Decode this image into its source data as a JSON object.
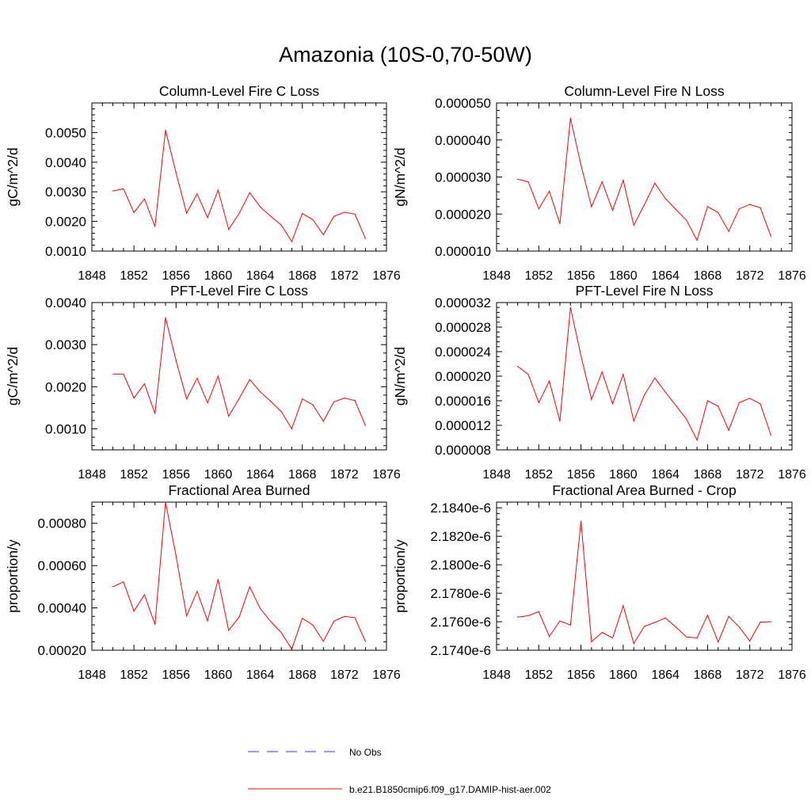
{
  "figure": {
    "title": "Amazonia (10S-0,70-50W)"
  },
  "legend": {
    "items": [
      {
        "label": "No Obs",
        "color": "#3333ff",
        "style": "dashed"
      },
      {
        "label": "b.e21.B1850cmip6.f09_g17.DAMIP-hist-aer.002",
        "color": "#ff0000",
        "style": "solid"
      }
    ]
  },
  "chart_data": [
    {
      "type": "line",
      "title": "Column-Level Fire C Loss",
      "xlabel": "",
      "ylabel": "gC/m^2/d",
      "xlim": [
        1848,
        1876
      ],
      "ylim": [
        0.001,
        0.006
      ],
      "xticks": [
        1848,
        1852,
        1856,
        1860,
        1864,
        1868,
        1872,
        1876
      ],
      "yticks": [
        0.001,
        0.002,
        0.003,
        0.004,
        0.005
      ],
      "ytick_labels": [
        "0.0010",
        "0.0020",
        "0.0030",
        "0.0040",
        "0.0050"
      ],
      "x": [
        1850,
        1851,
        1852,
        1853,
        1854,
        1855,
        1856,
        1857,
        1858,
        1859,
        1860,
        1861,
        1862,
        1863,
        1864,
        1865,
        1866,
        1867,
        1868,
        1869,
        1870,
        1871,
        1872,
        1873,
        1874
      ],
      "series": [
        {
          "values": [
            0.00303,
            0.0031,
            0.0023,
            0.00276,
            0.00183,
            0.00508,
            0.00364,
            0.00228,
            0.00293,
            0.00213,
            0.00306,
            0.00173,
            0.00227,
            0.00297,
            0.00249,
            0.00217,
            0.00188,
            0.00132,
            0.00227,
            0.00206,
            0.00155,
            0.00217,
            0.00231,
            0.00225,
            0.00142
          ],
          "color": "#ff0000"
        }
      ]
    },
    {
      "type": "line",
      "title": "Column-Level Fire N Loss",
      "xlabel": "",
      "ylabel": "gN/m^2/d",
      "xlim": [
        1848,
        1876
      ],
      "ylim": [
        1e-05,
        5e-05
      ],
      "xticks": [
        1848,
        1852,
        1856,
        1860,
        1864,
        1868,
        1872,
        1876
      ],
      "yticks": [
        1e-05,
        2e-05,
        3e-05,
        4e-05,
        5e-05
      ],
      "ytick_labels": [
        "0.000010",
        "0.000020",
        "0.000030",
        "0.000040",
        "0.000050"
      ],
      "x": [
        1850,
        1851,
        1852,
        1853,
        1854,
        1855,
        1856,
        1857,
        1858,
        1859,
        1860,
        1861,
        1862,
        1863,
        1864,
        1865,
        1866,
        1867,
        1868,
        1869,
        1870,
        1871,
        1872,
        1873,
        1874
      ],
      "series": [
        {
          "values": [
            2.94e-05,
            2.87e-05,
            2.14e-05,
            2.62e-05,
            1.74e-05,
            4.59e-05,
            3.32e-05,
            2.2e-05,
            2.87e-05,
            2.1e-05,
            2.91e-05,
            1.7e-05,
            2.25e-05,
            2.83e-05,
            2.42e-05,
            2.12e-05,
            1.83e-05,
            1.29e-05,
            2.2e-05,
            2.04e-05,
            1.53e-05,
            2.14e-05,
            2.26e-05,
            2.17e-05,
            1.4e-05
          ],
          "color": "#ff0000"
        }
      ]
    },
    {
      "type": "line",
      "title": "PFT-Level Fire C Loss",
      "xlabel": "",
      "ylabel": "gC/m^2/d",
      "xlim": [
        1848,
        1876
      ],
      "ylim": [
        0.0005,
        0.004
      ],
      "xticks": [
        1848,
        1852,
        1856,
        1860,
        1864,
        1868,
        1872,
        1876
      ],
      "yticks": [
        0.001,
        0.002,
        0.003,
        0.004
      ],
      "ytick_labels": [
        "0.0010",
        "0.0020",
        "0.0030",
        "0.0040"
      ],
      "x": [
        1850,
        1851,
        1852,
        1853,
        1854,
        1855,
        1856,
        1857,
        1858,
        1859,
        1860,
        1861,
        1862,
        1863,
        1864,
        1865,
        1866,
        1867,
        1868,
        1869,
        1870,
        1871,
        1872,
        1873,
        1874
      ],
      "series": [
        {
          "values": [
            0.0023,
            0.0023,
            0.00173,
            0.00207,
            0.00136,
            0.00364,
            0.00262,
            0.00171,
            0.0022,
            0.00162,
            0.00225,
            0.0013,
            0.00172,
            0.00217,
            0.00188,
            0.00165,
            0.00141,
            0.001,
            0.00171,
            0.00157,
            0.00118,
            0.00164,
            0.00173,
            0.00167,
            0.00108
          ],
          "color": "#ff0000"
        }
      ]
    },
    {
      "type": "line",
      "title": "PFT-Level Fire N Loss",
      "xlabel": "",
      "ylabel": "gN/m^2/d",
      "xlim": [
        1848,
        1876
      ],
      "ylim": [
        8e-06,
        3.2e-05
      ],
      "xticks": [
        1848,
        1852,
        1856,
        1860,
        1864,
        1868,
        1872,
        1876
      ],
      "yticks": [
        8e-06,
        1.2e-05,
        1.6e-05,
        2e-05,
        2.4e-05,
        2.8e-05,
        3.2e-05
      ],
      "ytick_labels": [
        "0.000008",
        "0.000012",
        "0.000016",
        "0.000020",
        "0.000024",
        "0.000028",
        "0.000032"
      ],
      "x": [
        1850,
        1851,
        1852,
        1853,
        1854,
        1855,
        1856,
        1857,
        1858,
        1859,
        1860,
        1861,
        1862,
        1863,
        1864,
        1865,
        1866,
        1867,
        1868,
        1869,
        1870,
        1871,
        1872,
        1873,
        1874
      ],
      "series": [
        {
          "values": [
            2.16e-05,
            2.03e-05,
            1.57e-05,
            1.92e-05,
            1.27e-05,
            3.12e-05,
            2.33e-05,
            1.62e-05,
            2.07e-05,
            1.55e-05,
            2.03e-05,
            1.27e-05,
            1.69e-05,
            1.97e-05,
            1.74e-05,
            1.52e-05,
            1.3e-05,
            9.6e-06,
            1.6e-05,
            1.51e-05,
            1.12e-05,
            1.57e-05,
            1.64e-05,
            1.55e-05,
            1.04e-05
          ],
          "color": "#ff0000"
        }
      ]
    },
    {
      "type": "line",
      "title": "Fractional Area Burned",
      "xlabel": "",
      "ylabel": "proportion/y",
      "xlim": [
        1848,
        1876
      ],
      "ylim": [
        0.0002,
        0.0009
      ],
      "xticks": [
        1848,
        1852,
        1856,
        1860,
        1864,
        1868,
        1872,
        1876
      ],
      "yticks": [
        0.0002,
        0.0004,
        0.0006,
        0.0008
      ],
      "ytick_labels": [
        "0.00020",
        "0.00040",
        "0.00060",
        "0.00080"
      ],
      "x": [
        1850,
        1851,
        1852,
        1853,
        1854,
        1855,
        1856,
        1857,
        1858,
        1859,
        1860,
        1861,
        1862,
        1863,
        1864,
        1865,
        1866,
        1867,
        1868,
        1869,
        1870,
        1871,
        1872,
        1873,
        1874
      ],
      "series": [
        {
          "values": [
            0.0005,
            0.000523,
            0.000385,
            0.000462,
            0.000322,
            0.0009,
            0.000646,
            0.000362,
            0.000478,
            0.000339,
            0.000535,
            0.000294,
            0.000357,
            0.0005,
            0.000397,
            0.000335,
            0.000284,
            0.000205,
            0.000351,
            0.000319,
            0.000242,
            0.000337,
            0.00036,
            0.000354,
            0.000241
          ],
          "color": "#ff0000"
        }
      ]
    },
    {
      "type": "line",
      "title": "Fractional Area Burned - Crop",
      "xlabel": "",
      "ylabel": "proportion/y",
      "xlim": [
        1848,
        1876
      ],
      "ylim": [
        2.174e-06,
        2.1844e-06
      ],
      "xticks": [
        1848,
        1852,
        1856,
        1860,
        1864,
        1868,
        1872,
        1876
      ],
      "yticks": [
        2.174e-06,
        2.176e-06,
        2.178e-06,
        2.18e-06,
        2.182e-06,
        2.184e-06
      ],
      "ytick_labels": [
        "2.1740e-6",
        "2.1760e-6",
        "2.1780e-6",
        "2.1800e-6",
        "2.1820e-6",
        "2.1840e-6"
      ],
      "x": [
        1850,
        1851,
        1852,
        1853,
        1854,
        1855,
        1856,
        1857,
        1858,
        1859,
        1860,
        1861,
        1862,
        1863,
        1864,
        1865,
        1866,
        1867,
        1868,
        1869,
        1870,
        1871,
        1872,
        1873,
        1874
      ],
      "series": [
        {
          "values": [
            2.17633e-06,
            2.17642e-06,
            2.17671e-06,
            2.17497e-06,
            2.17605e-06,
            2.17577e-06,
            2.18307e-06,
            2.1746e-06,
            2.17525e-06,
            2.17486e-06,
            2.17712e-06,
            2.17447e-06,
            2.17567e-06,
            2.17595e-06,
            2.17627e-06,
            2.17562e-06,
            2.17493e-06,
            2.17486e-06,
            2.17646e-06,
            2.17458e-06,
            2.17637e-06,
            2.17563e-06,
            2.17465e-06,
            2.17597e-06,
            2.176e-06
          ],
          "color": "#ff0000"
        }
      ]
    }
  ]
}
